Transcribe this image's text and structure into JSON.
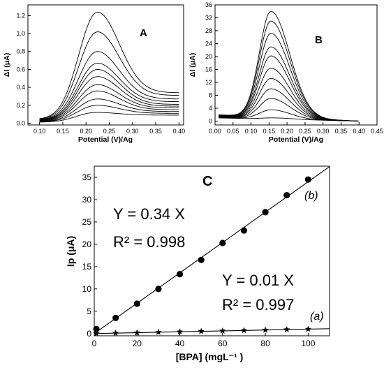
{
  "chart_data": [
    {
      "type": "line",
      "panel_label": "A",
      "xlabel": "Potential (V)/Ag",
      "ylabel": "ΔI (μA)",
      "xlim": [
        0.075,
        0.41
      ],
      "ylim": [
        -0.02,
        1.32
      ],
      "xticks": [
        "0.10",
        "0.15",
        "0.20",
        "0.25",
        "0.30",
        "0.35",
        "0.40"
      ],
      "yticks": [
        "0.0",
        "0.2",
        "0.4",
        "0.6",
        "0.8",
        "1.0",
        "1.2"
      ],
      "x_range": [
        0.1,
        0.4
      ],
      "peak_x": 0.225,
      "peak_heights": [
        0.12,
        0.2,
        0.27,
        0.36,
        0.43,
        0.52,
        0.6,
        0.67,
        0.8,
        1.02,
        1.24
      ],
      "end_values": [
        0.09,
        0.11,
        0.13,
        0.15,
        0.17,
        0.19,
        0.21,
        0.24,
        0.27,
        0.31,
        0.34
      ]
    },
    {
      "type": "line",
      "panel_label": "B",
      "xlabel": "Potential (V)/Ag",
      "ylabel": "ΔI (μA)",
      "xlim": [
        0.0,
        0.45
      ],
      "ylim": [
        -1.2,
        36
      ],
      "xticks": [
        "0.00",
        "0.05",
        "0.10",
        "0.15",
        "0.20",
        "0.25",
        "0.30",
        "0.35",
        "0.40",
        "0.45"
      ],
      "yticks": [
        "0",
        "4",
        "8",
        "12",
        "16",
        "20",
        "24",
        "28",
        "32",
        "36"
      ],
      "x_range": [
        0.01,
        0.4
      ],
      "peak_x": 0.155,
      "peak_heights": [
        1.0,
        3.5,
        7.0,
        10.0,
        13.2,
        16.4,
        20.2,
        23.0,
        27.2,
        31.0,
        34.0
      ],
      "start_values": [
        1.0,
        1.1,
        1.2,
        1.3,
        1.4,
        1.5,
        1.6,
        1.7,
        1.8,
        1.9,
        2.0
      ]
    },
    {
      "type": "scatter",
      "panel_label": "C",
      "xlabel": "[BPA] (mgL⁻¹ )",
      "ylabel": "Ip (μA)",
      "xlim": [
        0,
        110
      ],
      "ylim": [
        -0.5,
        37.5
      ],
      "xticks": [
        "0",
        "20",
        "40",
        "60",
        "80",
        "100"
      ],
      "yticks": [
        "0",
        "5",
        "10",
        "15",
        "20",
        "25",
        "30",
        "35"
      ],
      "series": [
        {
          "name": "(b)",
          "marker": "circle",
          "x": [
            1,
            10,
            20,
            30,
            40,
            50,
            60,
            70,
            80,
            90,
            100
          ],
          "y": [
            1.0,
            3.5,
            6.7,
            10.0,
            13.3,
            16.5,
            20.3,
            23.1,
            27.2,
            31.0,
            34.5
          ],
          "fit_slope": 0.34,
          "equation": "Y = 0.34 X",
          "r2": "R² = 0.998"
        },
        {
          "name": "(a)",
          "marker": "star",
          "x": [
            1,
            10,
            20,
            30,
            40,
            50,
            60,
            70,
            80,
            90,
            100
          ],
          "y": [
            0.02,
            0.1,
            0.2,
            0.3,
            0.4,
            0.5,
            0.6,
            0.7,
            0.8,
            0.9,
            1.0
          ],
          "fit_slope": 0.01,
          "equation": "Y = 0.01 X",
          "r2": "R² = 0.997"
        }
      ]
    }
  ]
}
